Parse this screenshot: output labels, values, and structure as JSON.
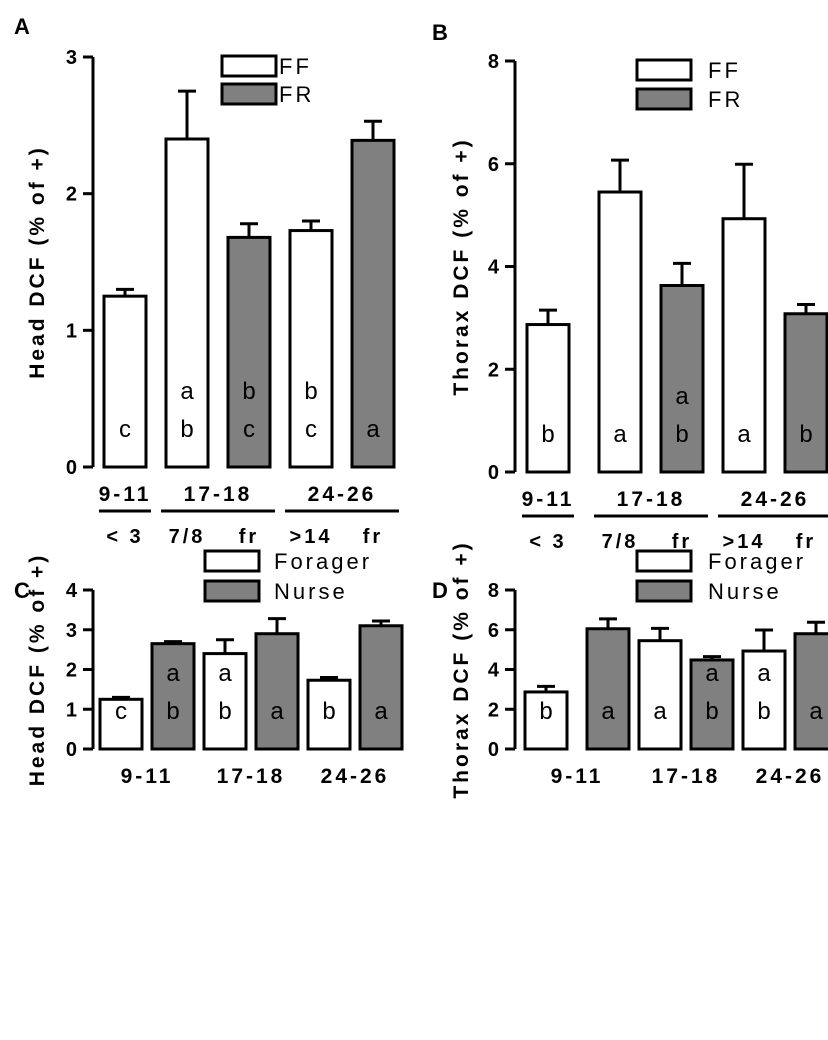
{
  "colors": {
    "white_bar": "#ffffff",
    "grey_bar": "#808080",
    "stroke": "#000000"
  },
  "chart_data": [
    {
      "panel": "A",
      "type": "bar",
      "ylabel": "Head DCF (% of +)",
      "ylim": [
        0,
        3
      ],
      "yticks": [
        "0",
        "1",
        "2",
        "3"
      ],
      "legend": [
        "FF",
        "FR"
      ],
      "legend_position": "top-right",
      "bars": [
        {
          "value": 1.25,
          "err": 0.05,
          "fill": "white",
          "letters": [
            "c"
          ]
        },
        {
          "value": 2.4,
          "err": 0.35,
          "fill": "white",
          "letters": [
            "a",
            "b"
          ]
        },
        {
          "value": 1.68,
          "err": 0.1,
          "fill": "grey",
          "letters": [
            "b",
            "c"
          ]
        },
        {
          "value": 1.73,
          "err": 0.07,
          "fill": "white",
          "letters": [
            "b",
            "c"
          ]
        },
        {
          "value": 2.39,
          "err": 0.14,
          "fill": "grey",
          "letters": [
            "a"
          ]
        }
      ],
      "groups": [
        "9-11",
        "17-18",
        "24-26"
      ],
      "sublabels": [
        "< 3",
        "7/8",
        "fr",
        ">14",
        "fr"
      ]
    },
    {
      "panel": "B",
      "type": "bar",
      "ylabel": "Thorax DCF (% of +)",
      "ylim": [
        0,
        8
      ],
      "yticks": [
        "0",
        "2",
        "4",
        "6",
        "8"
      ],
      "legend": [
        "FF",
        "FR"
      ],
      "legend_position": "top-right",
      "bars": [
        {
          "value": 2.87,
          "err": 0.28,
          "fill": "white",
          "letters": [
            "b"
          ]
        },
        {
          "value": 5.45,
          "err": 0.62,
          "fill": "white",
          "letters": [
            "a"
          ]
        },
        {
          "value": 3.63,
          "err": 0.43,
          "fill": "grey",
          "letters": [
            "a",
            "b"
          ]
        },
        {
          "value": 4.93,
          "err": 1.06,
          "fill": "white",
          "letters": [
            "a"
          ]
        },
        {
          "value": 3.08,
          "err": 0.18,
          "fill": "grey",
          "letters": [
            "b"
          ]
        }
      ],
      "groups": [
        "9-11",
        "17-18",
        "24-26"
      ],
      "sublabels": [
        "< 3",
        "7/8",
        "fr",
        ">14",
        "fr"
      ]
    },
    {
      "panel": "C",
      "type": "bar",
      "ylabel": "Head DCF (% of +)",
      "ylim": [
        0,
        4
      ],
      "yticks": [
        "0",
        "1",
        "2",
        "3",
        "4"
      ],
      "legend": [
        "Forager",
        "Nurse"
      ],
      "legend_position": "top-right",
      "bars": [
        {
          "value": 1.25,
          "err": 0.05,
          "fill": "white",
          "letters": [
            "c"
          ]
        },
        {
          "value": 2.65,
          "err": 0.05,
          "fill": "grey",
          "letters": [
            "a",
            "b"
          ]
        },
        {
          "value": 2.4,
          "err": 0.35,
          "fill": "white",
          "letters": [
            "a",
            "b"
          ]
        },
        {
          "value": 2.9,
          "err": 0.38,
          "fill": "grey",
          "letters": [
            "a"
          ]
        },
        {
          "value": 1.73,
          "err": 0.07,
          "fill": "white",
          "letters": [
            "b"
          ]
        },
        {
          "value": 3.1,
          "err": 0.12,
          "fill": "grey",
          "letters": [
            "a"
          ]
        }
      ],
      "groups": [
        "9-11",
        "17-18",
        "24-26"
      ]
    },
    {
      "panel": "D",
      "type": "bar",
      "ylabel": "Thorax DCF (% of +)",
      "ylim": [
        0,
        8
      ],
      "yticks": [
        "0",
        "2",
        "4",
        "6",
        "8"
      ],
      "legend": [
        "Forager",
        "Nurse"
      ],
      "legend_position": "top-right",
      "bars": [
        {
          "value": 2.87,
          "err": 0.28,
          "fill": "white",
          "letters": [
            "b"
          ]
        },
        {
          "value": 6.05,
          "err": 0.5,
          "fill": "grey",
          "letters": [
            "a"
          ]
        },
        {
          "value": 5.45,
          "err": 0.62,
          "fill": "white",
          "letters": [
            "a"
          ]
        },
        {
          "value": 4.48,
          "err": 0.17,
          "fill": "grey",
          "letters": [
            "a",
            "b"
          ]
        },
        {
          "value": 4.93,
          "err": 1.06,
          "fill": "white",
          "letters": [
            "a",
            "b"
          ]
        },
        {
          "value": 5.8,
          "err": 0.58,
          "fill": "grey",
          "letters": [
            "a"
          ]
        }
      ],
      "groups": [
        "9-11",
        "17-18",
        "24-26"
      ]
    }
  ]
}
